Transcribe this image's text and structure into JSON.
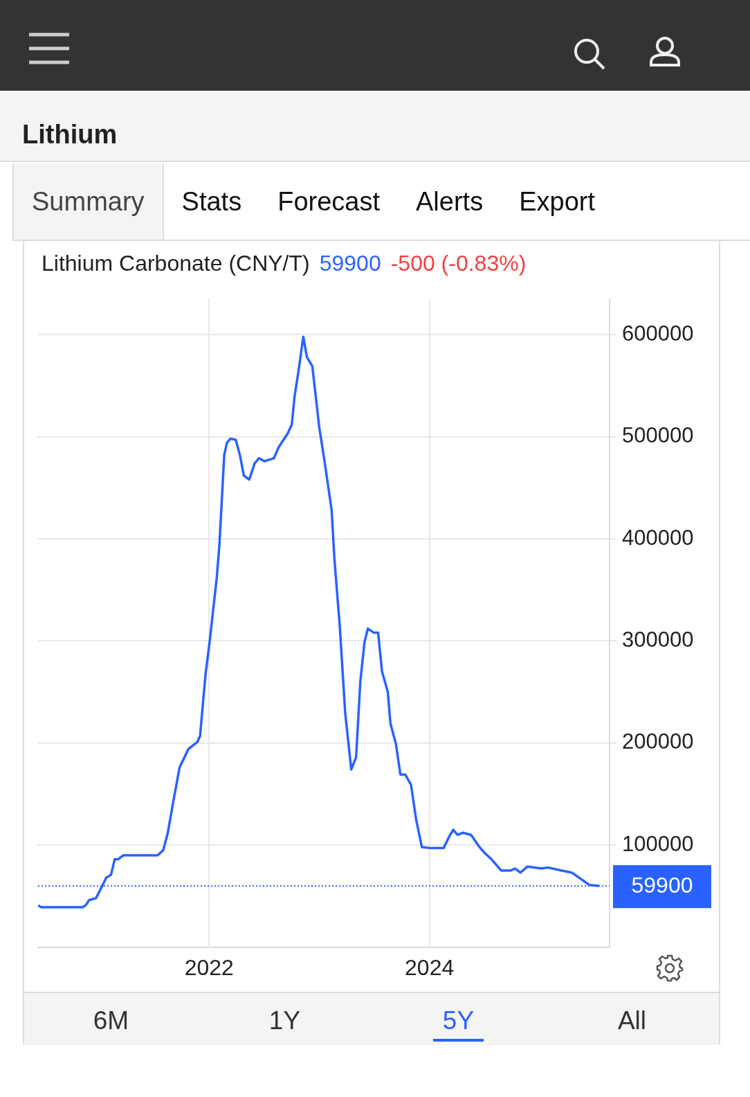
{
  "chart_data": {
    "type": "line",
    "title": "Lithium",
    "subtitle": "Lithium Carbonate (CNY/T)",
    "annotations": [
      "Summary",
      "Stats",
      "Forecast",
      "Alerts",
      "Export",
      "59900",
      "-500 (-0.83%)",
      "6M",
      "1Y",
      "5Y",
      "All"
    ],
    "x": [
      "2020-06-13",
      "2020-06-24",
      "2020-11-06",
      "2020-11-18",
      "2020-11-29",
      "2020-12-22",
      "2021-01-10",
      "2021-01-25",
      "2021-02-10",
      "2021-02-22",
      "2021-03-05",
      "2021-03-23",
      "2021-07-14",
      "2021-08-02",
      "2021-08-17",
      "2021-09-02",
      "2021-09-25",
      "2021-10-08",
      "2021-10-24",
      "2021-11-23",
      "2021-12-02",
      "2021-12-20",
      "2022-01-03",
      "2022-01-26",
      "2022-02-04",
      "2022-02-20",
      "2022-03-01",
      "2022-03-12",
      "2022-03-30",
      "2022-04-13",
      "2022-04-26",
      "2022-05-14",
      "2022-06-01",
      "2022-06-15",
      "2022-07-03",
      "2022-08-04",
      "2022-08-18",
      "2022-08-31",
      "2022-09-18",
      "2022-10-02",
      "2022-10-11",
      "2022-10-25",
      "2022-11-09",
      "2022-11-21",
      "2022-12-09",
      "2023-01-01",
      "2023-01-19",
      "2023-02-11",
      "2023-02-20",
      "2023-03-10",
      "2023-03-28",
      "2023-04-17",
      "2023-05-03",
      "2023-05-17",
      "2023-05-31",
      "2023-06-11",
      "2023-07-01",
      "2023-07-15",
      "2023-07-28",
      "2023-08-16",
      "2023-08-25",
      "2023-09-12",
      "2023-09-27",
      "2023-10-13",
      "2023-11-01",
      "2023-11-18",
      "2023-12-07",
      "2024-01-08",
      "2024-02-17",
      "2024-03-06",
      "2024-03-20",
      "2024-04-03",
      "2024-04-21",
      "2024-05-18",
      "2024-06-15",
      "2024-07-03",
      "2024-07-25",
      "2024-08-26",
      "2024-09-25",
      "2024-10-11",
      "2024-10-29",
      "2024-11-21",
      "2025-01-05",
      "2025-01-28",
      "2025-03-14",
      "2025-04-17",
      "2025-05-21",
      "2025-06-13",
      "2025-07-17"
    ],
    "series": [
      {
        "color": "#2962ff",
        "values": [
          41000,
          39000,
          39000,
          41000,
          46000,
          48000,
          59000,
          68000,
          71000,
          86000,
          86000,
          90000,
          90000,
          95000,
          112000,
          139000,
          176000,
          184000,
          194000,
          201000,
          207000,
          267000,
          300000,
          361000,
          394000,
          482000,
          494000,
          498000,
          497000,
          482000,
          462000,
          458000,
          474000,
          479000,
          476000,
          479000,
          489000,
          495000,
          503000,
          512000,
          539000,
          566000,
          598000,
          578000,
          569000,
          509000,
          475000,
          428000,
          381000,
          314000,
          229000,
          174000,
          186000,
          260000,
          299000,
          312000,
          308000,
          308000,
          270000,
          250000,
          219000,
          199000,
          169000,
          169000,
          159000,
          125000,
          98000,
          97000,
          97000,
          108000,
          115000,
          110000,
          112000,
          110000,
          98000,
          92000,
          86000,
          75000,
          75000,
          77000,
          73000,
          79000,
          77000,
          78000,
          75000,
          73000,
          66000,
          61000,
          59900
        ]
      }
    ],
    "xlim": [
      "2020-06-13",
      "2025-08-20"
    ],
    "xticks": [
      {
        "value": "2022",
        "label": "2022"
      },
      {
        "value": "2024",
        "label": "2024"
      }
    ],
    "ylim": [
      0,
      635000
    ],
    "yticks": [
      100000,
      200000,
      300000,
      400000,
      500000,
      600000
    ],
    "ref_lines": [
      {
        "axis": "y",
        "value": 59900,
        "label": "59900",
        "color": "#2962ff",
        "line_style": "dotted"
      }
    ],
    "grid": true,
    "legend": false,
    "marker": "none",
    "line_style": "solid"
  }
}
